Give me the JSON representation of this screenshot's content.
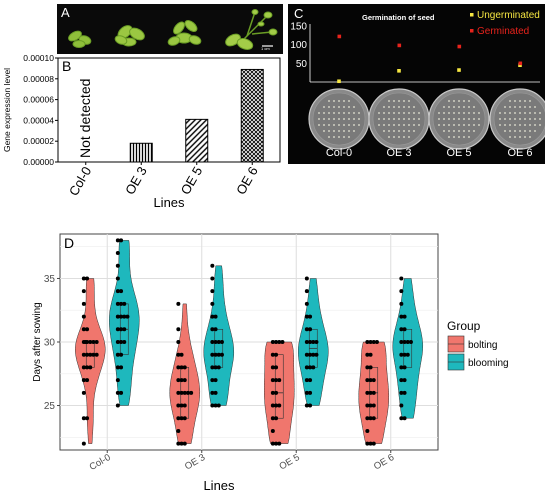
{
  "panel_a": {
    "label": "A",
    "scale_bar_label": "1 cm",
    "colors": {
      "background": "#0a0a0a",
      "plant": "#8fbf3a"
    }
  },
  "chart_data": [
    {
      "panel_label": "B",
      "type": "bar",
      "categories": [
        "Col-0",
        "OE 3",
        "OE 5",
        "OE 6"
      ],
      "values": [
        0,
        1.8e-05,
        4.1e-05,
        8.9e-05
      ],
      "bar_patterns": [
        "none",
        "vertical-lines",
        "diagonal-lines",
        "crosshatch"
      ],
      "annotation": "Not detected",
      "xlabel": "Lines",
      "ylabel": "Gene expression level",
      "ylim": [
        0,
        0.0001
      ],
      "yticks": [
        "0.00000",
        "0.00002",
        "0.00004",
        "0.00006",
        "0.00008",
        "0.00010"
      ],
      "grid": false
    },
    {
      "panel_label": "C",
      "type": "scatter",
      "title": "Germination of seed",
      "categories": [
        "Col-0",
        "OE 3",
        "OE 5",
        "OE 6"
      ],
      "series": [
        {
          "name": "Ungerminated",
          "color": "#f5e642",
          "values": [
            2,
            30,
            32,
            45
          ]
        },
        {
          "name": "Germinated",
          "color": "#e8231c",
          "values": [
            122,
            98,
            95,
            50
          ]
        }
      ],
      "yticks": [
        "50",
        "100",
        "150"
      ],
      "ylim": [
        0,
        150
      ],
      "legend_position": "top-right",
      "background": "#050505",
      "dish_labels": [
        "Col-0",
        "OE 3",
        "OE 5",
        "OE 6"
      ]
    },
    {
      "panel_label": "D",
      "type": "violin",
      "categories": [
        "Col-0",
        "OE 3",
        "OE 5",
        "OE 6"
      ],
      "xlabel": "Lines",
      "ylabel": "Days after sowing",
      "ylim": [
        21.5,
        38.5
      ],
      "yticks": [
        25,
        30,
        35
      ],
      "grid": true,
      "legend_title": "Group",
      "legend_position": "right",
      "series": [
        {
          "name": "bolting",
          "color": "#f0766d",
          "points": [
            [
              22,
              24,
              24,
              26,
              27,
              27,
              28,
              28,
              28,
              29,
              29,
              29,
              29,
              29,
              30,
              30,
              30,
              30,
              30,
              30,
              31,
              31,
              32,
              33,
              34,
              35,
              35
            ],
            [
              22,
              22,
              22,
              23,
              24,
              24,
              24,
              25,
              25,
              25,
              26,
              26,
              26,
              26,
              26,
              27,
              27,
              27,
              28,
              28,
              28,
              29,
              29,
              30,
              31,
              33
            ],
            [
              22,
              22,
              22,
              23,
              24,
              24,
              25,
              25,
              25,
              26,
              26,
              27,
              27,
              27,
              28,
              28,
              29,
              29,
              30,
              30,
              30,
              30
            ],
            [
              22,
              22,
              22,
              23,
              24,
              24,
              24,
              25,
              25,
              25,
              26,
              26,
              26,
              27,
              27,
              27,
              28,
              28,
              29,
              29,
              30,
              30,
              30,
              30
            ]
          ],
          "box": [
            [
              28,
              29,
              30
            ],
            [
              24,
              26,
              28
            ],
            [
              24,
              26,
              29
            ],
            [
              24,
              26,
              28
            ]
          ]
        },
        {
          "name": "blooming",
          "color": "#1eb8bd",
          "points": [
            [
              25,
              26,
              26,
              27,
              28,
              28,
              29,
              29,
              30,
              30,
              30,
              31,
              31,
              31,
              32,
              32,
              32,
              32,
              33,
              33,
              33,
              34,
              34,
              35,
              36,
              37,
              38,
              38
            ],
            [
              25,
              25,
              25,
              26,
              26,
              27,
              27,
              28,
              28,
              28,
              29,
              29,
              29,
              29,
              30,
              30,
              30,
              30,
              31,
              31,
              32,
              32,
              33,
              34,
              35,
              36
            ],
            [
              25,
              25,
              26,
              26,
              27,
              27,
              28,
              28,
              28,
              29,
              29,
              29,
              29,
              30,
              30,
              30,
              30,
              31,
              31,
              32,
              32,
              33,
              34,
              35
            ],
            [
              24,
              24,
              25,
              26,
              26,
              27,
              27,
              28,
              28,
              29,
              29,
              29,
              30,
              30,
              30,
              30,
              31,
              31,
              32,
              32,
              33,
              34,
              35
            ]
          ],
          "box": [
            [
              29,
              31,
              33
            ],
            [
              28,
              29,
              31
            ],
            [
              28,
              29.5,
              31
            ],
            [
              28,
              30,
              31
            ]
          ]
        }
      ]
    }
  ]
}
